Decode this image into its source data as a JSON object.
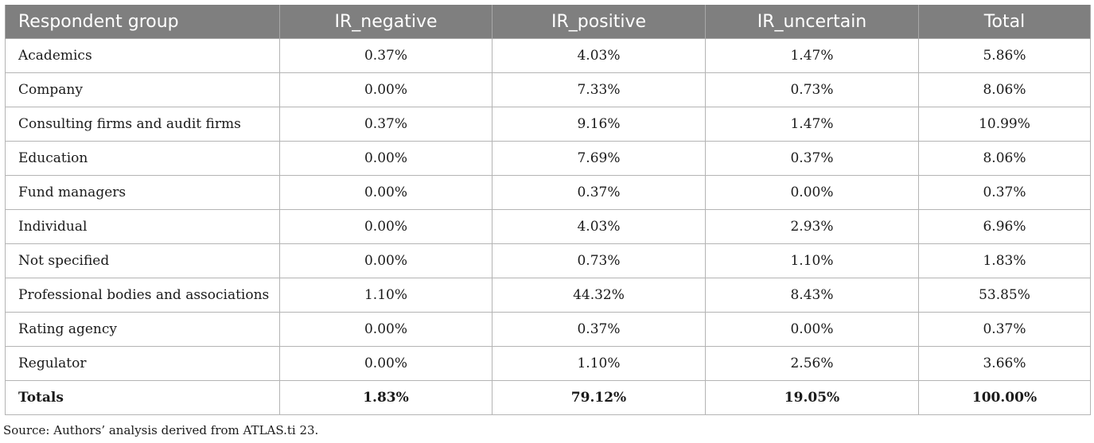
{
  "table": {
    "columns": [
      "Respondent group",
      "IR_negative",
      "IR_positive",
      "IR_uncertain",
      "Total"
    ],
    "rows": [
      [
        "Academics",
        "0.37%",
        "4.03%",
        "1.47%",
        "5.86%"
      ],
      [
        "Company",
        "0.00%",
        "7.33%",
        "0.73%",
        "8.06%"
      ],
      [
        "Consulting firms and audit firms",
        "0.37%",
        "9.16%",
        "1.47%",
        "10.99%"
      ],
      [
        "Education",
        "0.00%",
        "7.69%",
        "0.37%",
        "8.06%"
      ],
      [
        "Fund managers",
        "0.00%",
        "0.37%",
        "0.00%",
        "0.37%"
      ],
      [
        "Individual",
        "0.00%",
        "4.03%",
        "2.93%",
        "6.96%"
      ],
      [
        "Not specified",
        "0.00%",
        "0.73%",
        "1.10%",
        "1.83%"
      ],
      [
        "Professional bodies and associations",
        "1.10%",
        "44.32%",
        "8.43%",
        "53.85%"
      ],
      [
        "Rating agency",
        "0.00%",
        "0.37%",
        "0.00%",
        "0.37%"
      ],
      [
        "Regulator",
        "0.00%",
        "1.10%",
        "2.56%",
        "3.66%"
      ]
    ],
    "totals": [
      "Totals",
      "1.83%",
      "79.12%",
      "19.05%",
      "100.00%"
    ]
  },
  "source": "Source: Authors’ analysis derived from ATLAS.ti 23.",
  "colors": {
    "header_bg": "#7f7f7f",
    "header_text": "#ffffff",
    "grid": "#b4b4b4"
  }
}
